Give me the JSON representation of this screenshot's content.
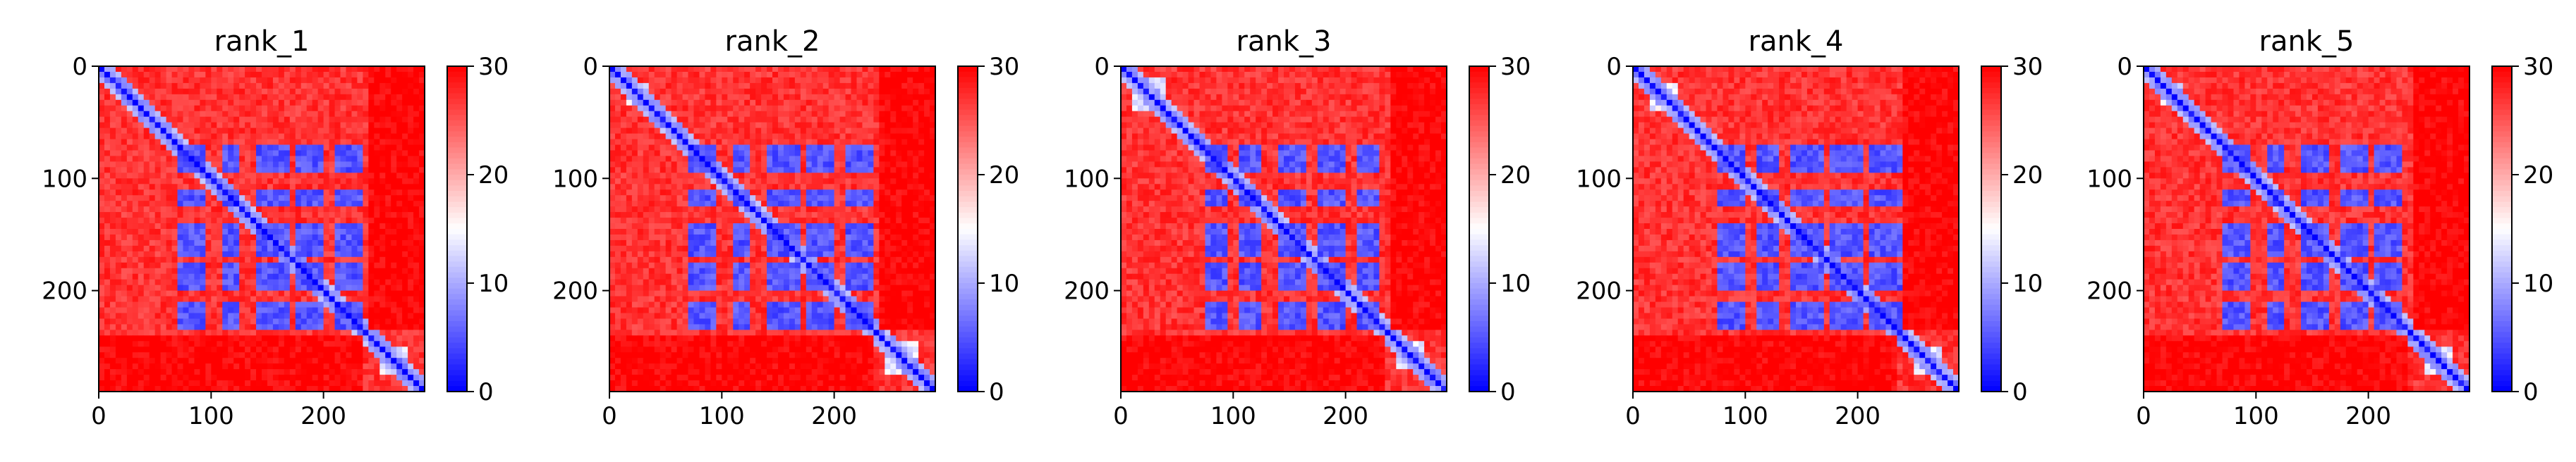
{
  "chart_data": [
    {
      "type": "heatmap",
      "title": "rank_1",
      "matrix_size": 290,
      "xlim": [
        0,
        290
      ],
      "ylim": [
        290,
        0
      ],
      "xticks": [
        "0",
        "100",
        "200"
      ],
      "yticks": [
        "0",
        "100",
        "200"
      ],
      "colorbar": {
        "range": [
          0,
          30
        ],
        "ticks": [
          "0",
          "10",
          "20",
          "30"
        ],
        "colormap": "bwr"
      },
      "blocks": [
        [
          70,
          95
        ],
        [
          110,
          125
        ],
        [
          140,
          168
        ],
        [
          175,
          200
        ],
        [
          210,
          235
        ]
      ],
      "block_cols": [
        [
          70,
          95
        ],
        [
          110,
          125
        ],
        [
          140,
          168
        ],
        [
          175,
          200
        ],
        [
          210,
          235
        ]
      ],
      "low_band": [
        240,
        290
      ],
      "near_diagonal_low": [
        [
          20,
          35
        ],
        [
          250,
          275
        ]
      ]
    },
    {
      "type": "heatmap",
      "title": "rank_2",
      "matrix_size": 290,
      "xlim": [
        0,
        290
      ],
      "ylim": [
        290,
        0
      ],
      "xticks": [
        "0",
        "100",
        "200"
      ],
      "yticks": [
        "0",
        "100",
        "200"
      ],
      "colorbar": {
        "range": [
          0,
          30
        ],
        "ticks": [
          "0",
          "10",
          "20",
          "30"
        ],
        "colormap": "bwr"
      },
      "blocks": [
        [
          70,
          95
        ],
        [
          110,
          125
        ],
        [
          140,
          168
        ],
        [
          175,
          200
        ],
        [
          210,
          235
        ]
      ],
      "block_cols": [
        [
          70,
          95
        ],
        [
          110,
          125
        ],
        [
          140,
          168
        ],
        [
          175,
          200
        ],
        [
          210,
          235
        ]
      ],
      "low_band": [
        240,
        290
      ],
      "near_diagonal_low": [
        [
          15,
          35
        ],
        [
          245,
          275
        ]
      ]
    },
    {
      "type": "heatmap",
      "title": "rank_3",
      "matrix_size": 290,
      "xlim": [
        0,
        290
      ],
      "ylim": [
        290,
        0
      ],
      "xticks": [
        "0",
        "100",
        "200"
      ],
      "yticks": [
        "0",
        "100",
        "200"
      ],
      "colorbar": {
        "range": [
          0,
          30
        ],
        "ticks": [
          "0",
          "10",
          "20",
          "30"
        ],
        "colormap": "bwr"
      },
      "blocks": [
        [
          70,
          95
        ],
        [
          110,
          125
        ],
        [
          140,
          168
        ],
        [
          175,
          200
        ],
        [
          210,
          235
        ]
      ],
      "block_cols": [
        [
          75,
          95
        ],
        [
          105,
          125
        ],
        [
          140,
          165
        ],
        [
          175,
          200
        ],
        [
          210,
          230
        ]
      ],
      "low_band": [
        240,
        290
      ],
      "near_diagonal_low": [
        [
          10,
          40
        ],
        [
          245,
          270
        ]
      ]
    },
    {
      "type": "heatmap",
      "title": "rank_4",
      "matrix_size": 290,
      "xlim": [
        0,
        290
      ],
      "ylim": [
        290,
        0
      ],
      "xticks": [
        "0",
        "100",
        "200"
      ],
      "yticks": [
        "0",
        "100",
        "200"
      ],
      "colorbar": {
        "range": [
          0,
          30
        ],
        "ticks": [
          "0",
          "10",
          "20",
          "30"
        ],
        "colormap": "bwr"
      },
      "blocks": [
        [
          70,
          95
        ],
        [
          110,
          125
        ],
        [
          140,
          168
        ],
        [
          175,
          200
        ],
        [
          210,
          235
        ]
      ],
      "block_cols": [
        [
          75,
          100
        ],
        [
          110,
          130
        ],
        [
          140,
          170
        ],
        [
          175,
          205
        ],
        [
          210,
          240
        ]
      ],
      "low_band": [
        240,
        290
      ],
      "near_diagonal_low": [
        [
          15,
          40
        ],
        [
          250,
          275
        ]
      ]
    },
    {
      "type": "heatmap",
      "title": "rank_5",
      "matrix_size": 290,
      "xlim": [
        0,
        290
      ],
      "ylim": [
        290,
        0
      ],
      "xticks": [
        "0",
        "100",
        "200"
      ],
      "yticks": [
        "0",
        "100",
        "200"
      ],
      "colorbar": {
        "range": [
          0,
          30
        ],
        "ticks": [
          "0",
          "10",
          "20",
          "30"
        ],
        "colormap": "bwr"
      },
      "blocks": [
        [
          70,
          95
        ],
        [
          110,
          125
        ],
        [
          140,
          168
        ],
        [
          175,
          200
        ],
        [
          210,
          235
        ]
      ],
      "block_cols": [
        [
          70,
          95
        ],
        [
          110,
          125
        ],
        [
          140,
          165
        ],
        [
          175,
          200
        ],
        [
          205,
          230
        ]
      ],
      "low_band": [
        240,
        290
      ],
      "near_diagonal_low": [
        [
          15,
          35
        ],
        [
          250,
          275
        ]
      ]
    }
  ]
}
